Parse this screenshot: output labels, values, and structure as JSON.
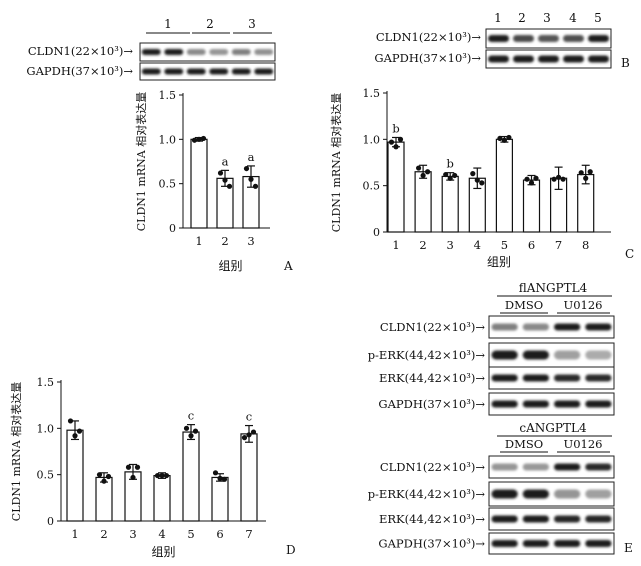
{
  "panels": {
    "A": {
      "letter": "A",
      "lane_numbers": [
        "1",
        "2",
        "3"
      ],
      "rows": [
        {
          "label": "CLDN1(22×10³)→",
          "intensities": [
            0.95,
            0.95,
            0.45,
            0.4,
            0.5,
            0.42
          ]
        },
        {
          "label": "GAPDH(37×10³)→",
          "intensities": [
            0.95,
            0.95,
            0.95,
            0.95,
            0.95,
            0.95
          ]
        }
      ]
    },
    "B": {
      "letter": "B",
      "lane_numbers": [
        "1",
        "2",
        "3",
        "4",
        "5"
      ],
      "rows": [
        {
          "label": "CLDN1(22×10³)→",
          "intensities": [
            0.95,
            0.75,
            0.7,
            0.72,
            0.95
          ]
        },
        {
          "label": "GAPDH(37×10³)→",
          "intensities": [
            0.95,
            0.95,
            0.95,
            0.95,
            0.95
          ]
        }
      ]
    },
    "C": {
      "letter": "C"
    },
    "D": {
      "letter": "D"
    },
    "E": {
      "letter": "E",
      "groups": [
        {
          "title": "flANGPTL4",
          "conditions": [
            "DMSO",
            "U0126"
          ],
          "rows": [
            {
              "label": "CLDN1(22×10³)→",
              "intensities": [
                0.5,
                0.45,
                0.95,
                0.95
              ]
            },
            {
              "label": "p-ERK(44,42×10³)→",
              "intensities": [
                0.95,
                0.95,
                0.35,
                0.3
              ]
            },
            {
              "label": "ERK(44,42×10³)→",
              "intensities": [
                0.95,
                0.95,
                0.9,
                0.9
              ]
            },
            {
              "label": "GAPDH(37×10³)→",
              "intensities": [
                0.95,
                0.95,
                0.95,
                0.95
              ]
            }
          ]
        },
        {
          "title": "cANGPTL4",
          "conditions": [
            "DMSO",
            "U0126"
          ],
          "rows": [
            {
              "label": "CLDN1(22×10³)→",
              "intensities": [
                0.4,
                0.38,
                0.95,
                0.9
              ]
            },
            {
              "label": "p-ERK(44,42×10³)→",
              "intensities": [
                0.95,
                0.95,
                0.4,
                0.35
              ]
            },
            {
              "label": "ERK(44,42×10³)→",
              "intensities": [
                0.95,
                0.95,
                0.92,
                0.92
              ]
            },
            {
              "label": "GAPDH(37×10³)→",
              "intensities": [
                0.95,
                0.95,
                0.95,
                0.95
              ]
            }
          ]
        }
      ]
    }
  },
  "chart_data": [
    {
      "panel": "A",
      "type": "bar",
      "categories": [
        "1",
        "2",
        "3"
      ],
      "values": [
        1.0,
        0.56,
        0.58
      ],
      "errors": [
        0.02,
        0.09,
        0.12
      ],
      "points": [
        [
          0.99,
          1.0,
          1.01
        ],
        [
          0.62,
          0.54,
          0.47
        ],
        [
          0.67,
          0.55,
          0.47
        ]
      ],
      "annotations": [
        "",
        "a",
        "a"
      ],
      "ylabel": "CLDN1 mRNA 相对表达量",
      "xlabel": "组别",
      "ylim": [
        0,
        1.5
      ],
      "yticks": [
        "0",
        "0.5",
        "1.0",
        "1.5"
      ]
    },
    {
      "panel": "C",
      "type": "bar",
      "categories": [
        "1",
        "2",
        "3",
        "4",
        "5",
        "6",
        "7",
        "8"
      ],
      "values": [
        0.97,
        0.65,
        0.6,
        0.58,
        1.0,
        0.56,
        0.58,
        0.62
      ],
      "errors": [
        0.05,
        0.07,
        0.04,
        0.11,
        0.03,
        0.05,
        0.12,
        0.1
      ],
      "points": [
        [
          0.97,
          0.92,
          1.0
        ],
        [
          0.69,
          0.61,
          0.65
        ],
        [
          0.62,
          0.58,
          0.61
        ],
        [
          0.63,
          0.56,
          0.53
        ],
        [
          1.01,
          0.99,
          1.02
        ],
        [
          0.57,
          0.53,
          0.58
        ],
        [
          0.57,
          0.59,
          0.57
        ],
        [
          0.64,
          0.58,
          0.65
        ]
      ],
      "annotations": [
        "b",
        "",
        "b",
        "",
        "",
        "",
        "",
        ""
      ],
      "ylabel": "CLDN1 mRNA 相对表达量",
      "xlabel": "组别",
      "ylim": [
        0,
        1.5
      ],
      "yticks": [
        "0",
        "0.5",
        "1.0",
        "1.5"
      ]
    },
    {
      "panel": "D",
      "type": "bar",
      "categories": [
        "1",
        "2",
        "3",
        "4",
        "5",
        "6",
        "7"
      ],
      "values": [
        0.98,
        0.47,
        0.53,
        0.49,
        0.96,
        0.47,
        0.94
      ],
      "errors": [
        0.1,
        0.05,
        0.08,
        0.03,
        0.08,
        0.04,
        0.09
      ],
      "points": [
        [
          1.08,
          0.92,
          0.97
        ],
        [
          0.5,
          0.43,
          0.48
        ],
        [
          0.58,
          0.47,
          0.58
        ],
        [
          0.49,
          0.49,
          0.49
        ],
        [
          1.0,
          0.92,
          0.97
        ],
        [
          0.52,
          0.46,
          0.45
        ],
        [
          0.9,
          0.93,
          0.96
        ]
      ],
      "annotations": [
        "",
        "",
        "",
        "",
        "c",
        "",
        "c"
      ],
      "ylabel": "CLDN1 mRNA 相对表达量",
      "xlabel": "组别",
      "ylim": [
        0,
        1.5
      ],
      "yticks": [
        "0",
        "0.5",
        "1.0",
        "1.5"
      ]
    }
  ]
}
